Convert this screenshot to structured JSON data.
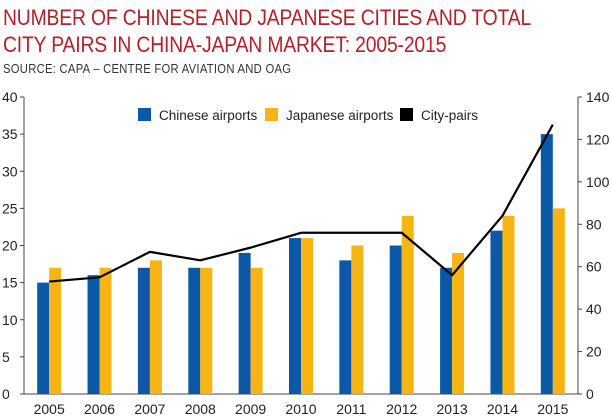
{
  "title_line1": "NUMBER OF CHINESE AND JAPANESE CITIES AND TOTAL",
  "title_line2": "CITY PAIRS IN CHINA-JAPAN MARKET: 2005-2015",
  "subtitle": "SOURCE: CAPA – CENTRE FOR AVIATION AND OAG",
  "chart_data": {
    "type": "bar",
    "categories": [
      "2005",
      "2006",
      "2007",
      "2008",
      "2009",
      "2010",
      "2011",
      "2012",
      "2013",
      "2014",
      "2015"
    ],
    "series": [
      {
        "name": "Chinese airports",
        "type": "bar",
        "axis": "left",
        "color": "#0b58a6",
        "values": [
          15,
          16,
          17,
          17,
          19,
          21,
          18,
          20,
          17,
          22,
          35
        ]
      },
      {
        "name": "Japanese airports",
        "type": "bar",
        "axis": "left",
        "color": "#f7b514",
        "values": [
          17,
          17,
          18,
          17,
          17,
          21,
          20,
          24,
          19,
          24,
          25
        ]
      },
      {
        "name": "City-pairs",
        "type": "line",
        "axis": "right",
        "color": "#000000",
        "values": [
          53,
          55,
          67,
          63,
          69,
          76,
          76,
          76,
          56,
          84,
          127
        ]
      }
    ],
    "y_left": {
      "min": 0,
      "max": 40,
      "ticks": [
        "0",
        "5",
        "10",
        "15",
        "20",
        "25",
        "30",
        "35",
        "40"
      ]
    },
    "y_right": {
      "min": 0,
      "max": 140,
      "ticks": [
        "0",
        "20",
        "40",
        "60",
        "80",
        "100",
        "120",
        "140"
      ]
    },
    "grid": false,
    "legend_position": "top-center"
  }
}
